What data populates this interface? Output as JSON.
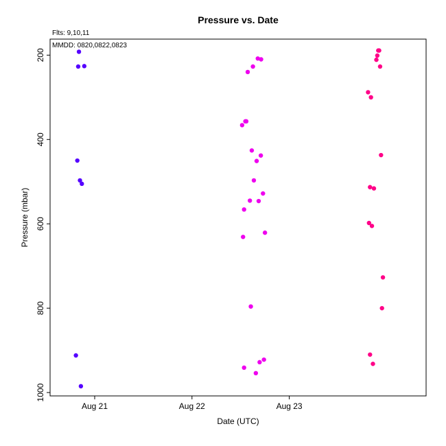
{
  "chart_data": {
    "type": "scatter",
    "title": "Pressure  vs. Date",
    "xlabel": "Date (UTC)",
    "ylabel": "Pressure (mbar)",
    "annotations": [
      "Flts: 9,10,11",
      "MMDD: 0820,0822,0823"
    ],
    "x_ticks": [
      "Aug 21",
      "Aug 22",
      "Aug 23"
    ],
    "y_ticks": [
      200,
      400,
      600,
      800,
      1000
    ],
    "y_reversed": true,
    "ylim": [
      1008,
      162
    ],
    "xlim": [
      "2012-08-20 13:00",
      "2012-08-24 09:45"
    ],
    "grid": false,
    "series": [
      {
        "color": "#5500ff",
        "points": [
          {
            "x": "2012-08-20 20:07",
            "y": 192
          },
          {
            "x": "2012-08-20 19:56",
            "y": 227
          },
          {
            "x": "2012-08-20 21:26",
            "y": 226
          },
          {
            "x": "2012-08-20 19:43",
            "y": 450
          },
          {
            "x": "2012-08-20 20:22",
            "y": 497
          },
          {
            "x": "2012-08-20 20:50",
            "y": 505
          },
          {
            "x": "2012-08-20 19:22",
            "y": 912
          },
          {
            "x": "2012-08-20 20:36",
            "y": 985
          }
        ]
      },
      {
        "color": "#ee00ee",
        "points": [
          {
            "x": "2012-08-22 16:14",
            "y": 208
          },
          {
            "x": "2012-08-22 17:03",
            "y": 210
          },
          {
            "x": "2012-08-22 15:02",
            "y": 227
          },
          {
            "x": "2012-08-22 13:45",
            "y": 240
          },
          {
            "x": "2012-08-22 13:10",
            "y": 357
          },
          {
            "x": "2012-08-22 13:24",
            "y": 357
          },
          {
            "x": "2012-08-22 12:22",
            "y": 366
          },
          {
            "x": "2012-08-22 14:45",
            "y": 426
          },
          {
            "x": "2012-08-22 16:59",
            "y": 438
          },
          {
            "x": "2012-08-22 15:57",
            "y": 451
          },
          {
            "x": "2012-08-22 15:16",
            "y": 497
          },
          {
            "x": "2012-08-22 17:31",
            "y": 528
          },
          {
            "x": "2012-08-22 14:17",
            "y": 545
          },
          {
            "x": "2012-08-22 16:27",
            "y": 546
          },
          {
            "x": "2012-08-22 12:51",
            "y": 566
          },
          {
            "x": "2012-08-22 18:00",
            "y": 621
          },
          {
            "x": "2012-08-22 12:36",
            "y": 631
          },
          {
            "x": "2012-08-22 14:31",
            "y": 796
          },
          {
            "x": "2012-08-22 17:45",
            "y": 922
          },
          {
            "x": "2012-08-22 16:41",
            "y": 928
          },
          {
            "x": "2012-08-22 12:51",
            "y": 941
          },
          {
            "x": "2012-08-22 15:45",
            "y": 954
          }
        ]
      },
      {
        "color": "#ff0088",
        "points": [
          {
            "x": "2012-08-23 21:57",
            "y": 189
          },
          {
            "x": "2012-08-23 22:10",
            "y": 189
          },
          {
            "x": "2012-08-23 21:43",
            "y": 201
          },
          {
            "x": "2012-08-23 21:29",
            "y": 211
          },
          {
            "x": "2012-08-23 22:24",
            "y": 227
          },
          {
            "x": "2012-08-23 19:26",
            "y": 288
          },
          {
            "x": "2012-08-23 20:09",
            "y": 300
          },
          {
            "x": "2012-08-23 22:38",
            "y": 437
          },
          {
            "x": "2012-08-23 19:55",
            "y": 513
          },
          {
            "x": "2012-08-23 20:53",
            "y": 516
          },
          {
            "x": "2012-08-23 19:40",
            "y": 598
          },
          {
            "x": "2012-08-23 20:23",
            "y": 605
          },
          {
            "x": "2012-08-23 23:06",
            "y": 727
          },
          {
            "x": "2012-08-23 22:52",
            "y": 800
          },
          {
            "x": "2012-08-23 19:55",
            "y": 910
          },
          {
            "x": "2012-08-23 20:38",
            "y": 932
          }
        ]
      }
    ]
  }
}
